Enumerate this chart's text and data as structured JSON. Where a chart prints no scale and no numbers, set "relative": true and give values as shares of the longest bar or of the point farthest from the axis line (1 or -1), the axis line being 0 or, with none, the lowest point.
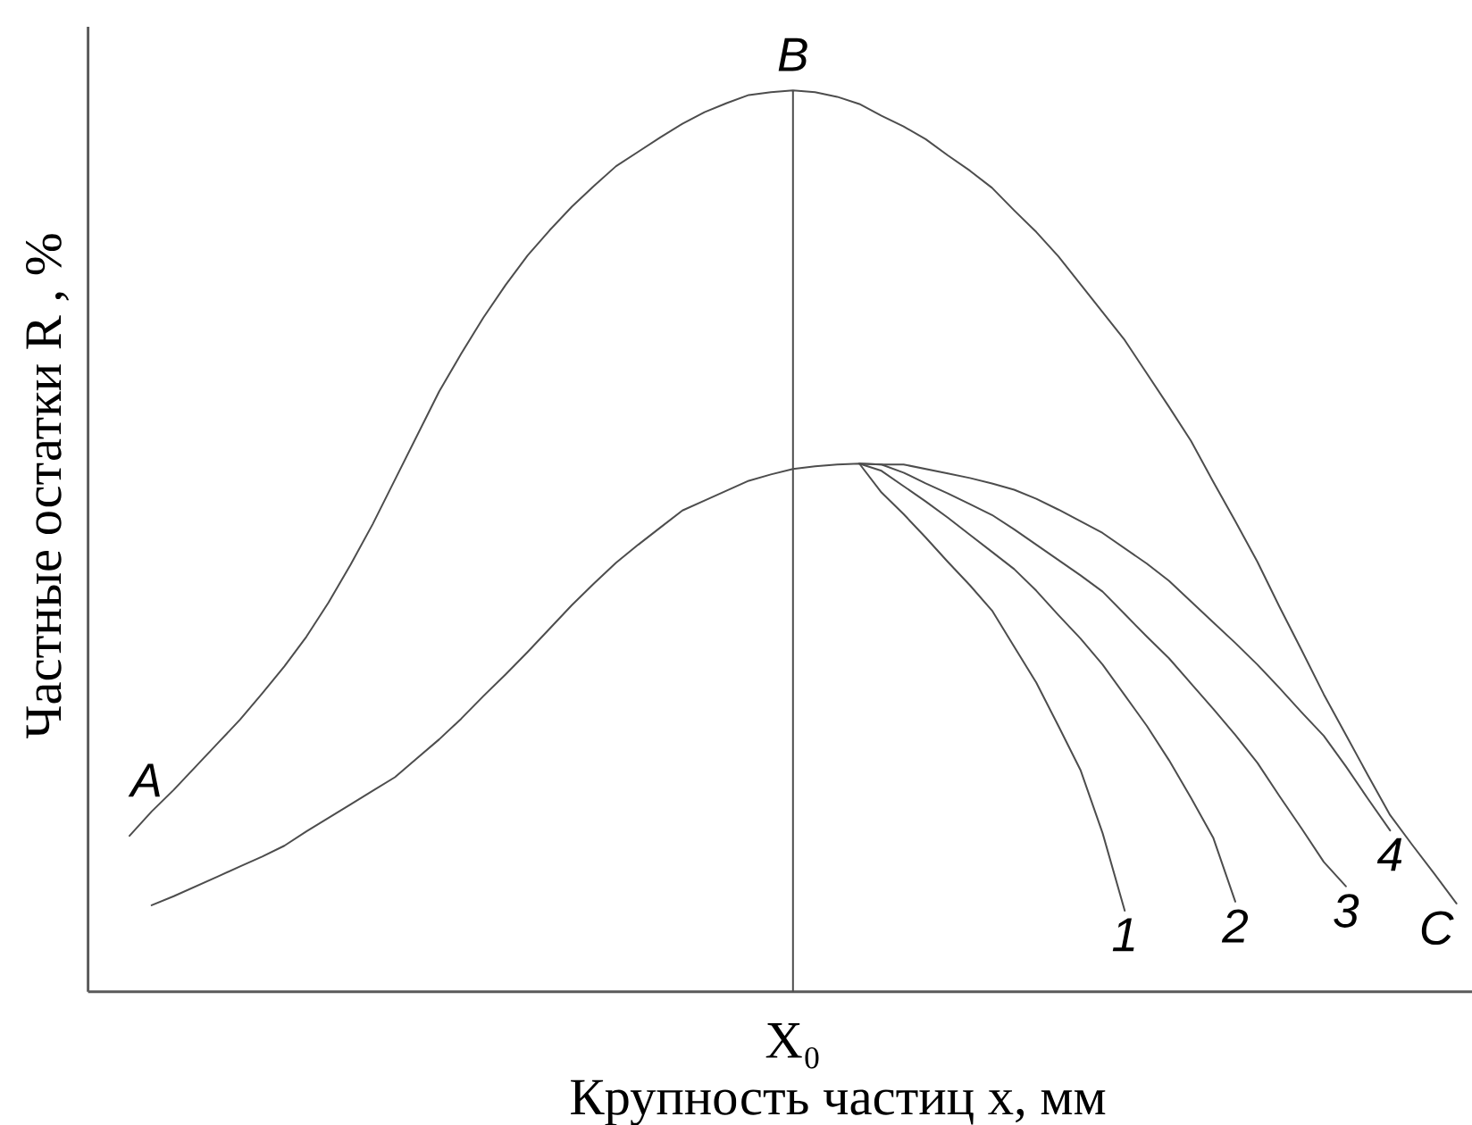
{
  "chart_data": {
    "type": "line",
    "relative": true,
    "xlabel": "Крупность частиц x, мм",
    "ylabel": "Частные остатки R , %",
    "marker": "none",
    "line_style": "solid",
    "categories": [
      null,
      null,
      null,
      null,
      null,
      null,
      null,
      null,
      null,
      null,
      null,
      null,
      null,
      null,
      null,
      null,
      null,
      null,
      null,
      null,
      null,
      null,
      null,
      null,
      null,
      null,
      null,
      null,
      null,
      null,
      null,
      null,
      null,
      null,
      null,
      null,
      null,
      null,
      null,
      null,
      null,
      null,
      null,
      null,
      null,
      null,
      null,
      null,
      null,
      null,
      null,
      null,
      null,
      null,
      null,
      null,
      null,
      null,
      null,
      null,
      null
    ],
    "series": [
      {
        "name": "C",
        "color": "#4d4d4d",
        "values": [
          0.173,
          0.2,
          0.224,
          0.25,
          0.276,
          0.302,
          0.331,
          0.361,
          0.394,
          0.432,
          0.474,
          0.519,
          0.568,
          0.617,
          0.666,
          0.708,
          0.748,
          0.784,
          0.817,
          0.845,
          0.871,
          0.894,
          0.916,
          0.932,
          0.948,
          0.963,
          0.976,
          0.986,
          0.995,
          0.998,
          1.0,
          0.998,
          0.993,
          0.985,
          0.972,
          0.96,
          0.946,
          0.928,
          0.911,
          0.892,
          0.867,
          0.843,
          0.816,
          0.785,
          0.754,
          0.723,
          0.686,
          0.649,
          0.611,
          0.566,
          0.522,
          0.477,
          0.427,
          0.379,
          0.33,
          0.285,
          0.24,
          0.196,
          0.163,
          0.131,
          0.098
        ]
      },
      {
        "name": "1",
        "color": "#4d4d4d",
        "values": [
          null,
          null,
          null,
          null,
          null,
          null,
          null,
          null,
          null,
          null,
          null,
          null,
          null,
          null,
          null,
          null,
          null,
          null,
          null,
          null,
          null,
          null,
          null,
          null,
          null,
          null,
          null,
          null,
          null,
          null,
          null,
          null,
          null,
          0.586,
          0.554,
          0.53,
          0.504,
          0.477,
          0.451,
          0.423,
          0.383,
          0.343,
          0.295,
          0.246,
          0.176,
          0.09,
          null,
          null,
          null,
          null,
          null,
          null,
          null,
          null,
          null,
          null,
          null,
          null,
          null,
          null,
          null
        ]
      },
      {
        "name": "2",
        "color": "#4d4d4d",
        "values": [
          null,
          null,
          null,
          null,
          null,
          null,
          null,
          null,
          null,
          null,
          null,
          null,
          null,
          null,
          null,
          null,
          null,
          null,
          null,
          null,
          null,
          null,
          null,
          null,
          null,
          null,
          null,
          null,
          null,
          null,
          null,
          null,
          null,
          0.586,
          0.578,
          0.561,
          0.544,
          0.526,
          0.507,
          0.488,
          0.469,
          0.445,
          0.418,
          0.392,
          0.363,
          0.329,
          0.295,
          0.257,
          0.215,
          0.171,
          0.1,
          null,
          null,
          null,
          null,
          null,
          null,
          null,
          null,
          null,
          null
        ]
      },
      {
        "name": "3",
        "color": "#4d4d4d",
        "values": [
          null,
          null,
          null,
          null,
          null,
          null,
          null,
          null,
          null,
          null,
          null,
          null,
          null,
          null,
          null,
          null,
          null,
          null,
          null,
          null,
          null,
          null,
          null,
          null,
          null,
          null,
          null,
          null,
          null,
          null,
          null,
          null,
          null,
          0.586,
          0.585,
          0.576,
          0.564,
          0.553,
          0.541,
          0.529,
          0.513,
          0.496,
          0.479,
          0.462,
          0.444,
          0.419,
          0.394,
          0.37,
          0.342,
          0.314,
          0.285,
          0.254,
          0.217,
          0.181,
          0.144,
          0.117,
          null,
          null,
          null,
          null,
          null
        ]
      },
      {
        "name": "4",
        "color": "#4d4d4d",
        "values": [
          null,
          0.096,
          0.106,
          0.117,
          0.128,
          0.139,
          0.15,
          0.162,
          0.178,
          0.193,
          0.208,
          0.223,
          0.238,
          0.259,
          0.28,
          0.303,
          0.328,
          0.352,
          0.377,
          0.403,
          0.429,
          0.453,
          0.476,
          0.496,
          0.515,
          0.534,
          0.545,
          0.556,
          0.567,
          0.574,
          0.58,
          0.583,
          0.585,
          0.586,
          0.585,
          0.585,
          0.58,
          0.575,
          0.57,
          0.564,
          0.557,
          0.547,
          0.535,
          0.522,
          0.509,
          0.492,
          0.475,
          0.456,
          0.433,
          0.41,
          0.387,
          0.363,
          0.337,
          0.31,
          0.284,
          0.25,
          0.214,
          0.179,
          null,
          null,
          null
        ]
      }
    ],
    "annotations": [
      "A",
      {
        "text": "B",
        "y": 1.0
      },
      "X₀"
    ]
  }
}
